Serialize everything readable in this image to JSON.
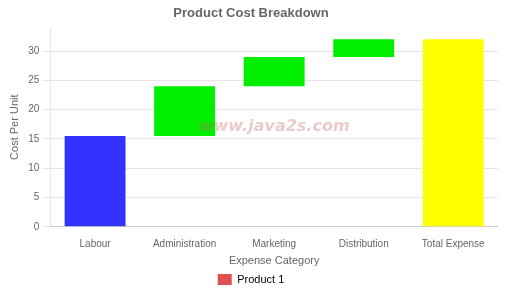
{
  "chart_data": {
    "type": "bar",
    "title": "Product Cost Breakdown",
    "xlabel": "Expense Category",
    "ylabel": "Cost Per Unit",
    "categories": [
      "Labour",
      "Administration",
      "Marketing",
      "Distribution",
      "Total Expense"
    ],
    "series": [
      {
        "name": "Product 1",
        "color": "#e05050",
        "values": [
          15.5,
          8.5,
          5,
          3,
          32
        ],
        "bottoms": [
          0,
          15.5,
          24,
          29,
          0
        ],
        "colors": [
          "#3333ff",
          "#00ee00",
          "#00ee00",
          "#00ee00",
          "#ffff00"
        ]
      }
    ],
    "ylim": [
      0,
      34
    ],
    "yticks": [
      0,
      5,
      10,
      15,
      20,
      25,
      30
    ],
    "grid": true,
    "legend": "bottom",
    "annotations": [
      "www.java2s.com"
    ]
  }
}
